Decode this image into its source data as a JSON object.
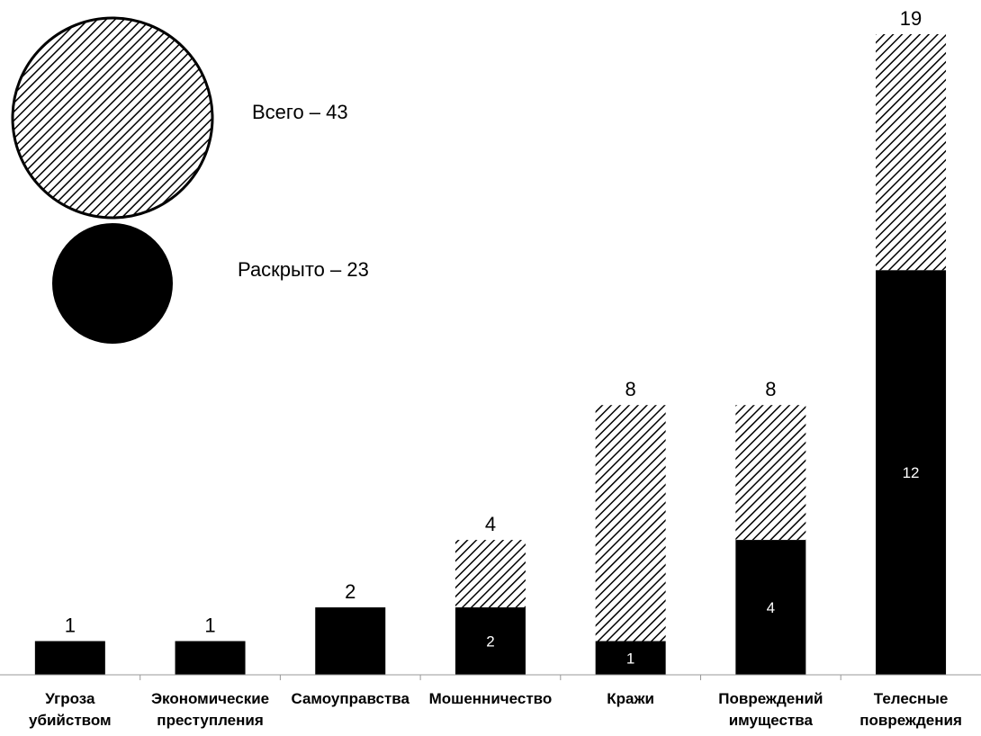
{
  "chart_data": {
    "type": "bar",
    "stacked": true,
    "categories": [
      [
        "Угроза",
        "убийством"
      ],
      [
        "Экономические",
        "преступления"
      ],
      [
        "Самоуправства"
      ],
      [
        "Мошенничество"
      ],
      [
        "Кражи"
      ],
      [
        "Повреждений",
        "имущества"
      ],
      [
        "Телесные",
        "повреждения"
      ]
    ],
    "totals": [
      1,
      1,
      2,
      4,
      8,
      8,
      19
    ],
    "solved": [
      1,
      1,
      2,
      2,
      1,
      4,
      12
    ],
    "total_labels": [
      "1",
      "1",
      "2",
      "4",
      "8",
      "8",
      "19"
    ],
    "solved_labels": [
      "",
      "",
      "",
      "2",
      "1",
      "4",
      "12"
    ],
    "ylim": [
      0,
      19
    ],
    "grid": false,
    "legend": {
      "position": "top-left",
      "items": [
        {
          "label": "Всего – 43",
          "pattern": "hatched"
        },
        {
          "label": "Раскрыто – 23",
          "pattern": "solid"
        }
      ]
    },
    "colors": {
      "solved": "#000000",
      "total_hatch": "#000000",
      "background": "#ffffff"
    }
  }
}
